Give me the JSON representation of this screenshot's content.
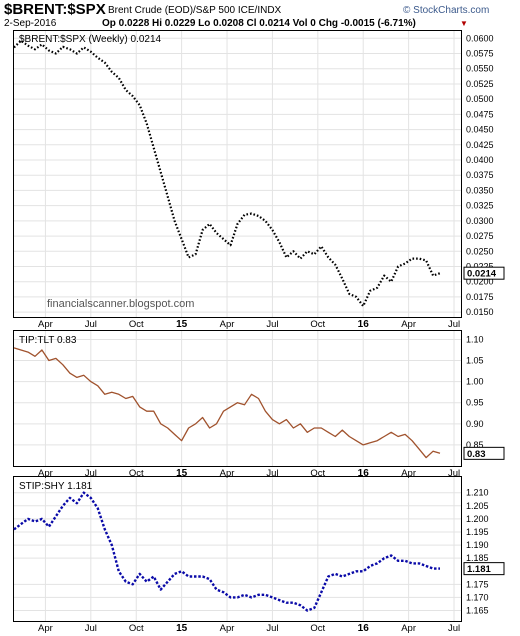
{
  "header": {
    "symbol": "$BRENT:$SPX",
    "description": "Brent Crude (EOD)/S&P 500 ICE/INDX",
    "brand": "© StockCharts.com",
    "date": "2-Sep-2016",
    "quote": "Op 0.0228  Hi 0.0229  Lo 0.0208  Cl 0.0214  Vol 0  Chg -0.0015 (-6.71%)",
    "down_marker": "▼"
  },
  "watermark": "financialscanner.blogspot.com",
  "colors": {
    "main": "#000000",
    "tip": "#a0522d",
    "stip": "#0a0aa8",
    "badge_bg": "#ffffff"
  },
  "chart_data": [
    {
      "type": "line",
      "legend": "$BRENT:$SPX (Weekly) 0.0214",
      "series": [
        {
          "name": "$BRENT:$SPX",
          "style": "dotted",
          "last_label": "0.0214",
          "x": [
            0,
            2,
            4,
            6,
            8,
            10,
            12,
            14,
            16,
            18,
            20,
            22,
            24,
            26,
            28,
            30,
            32,
            34,
            36,
            38,
            40,
            42,
            44,
            46,
            48,
            50,
            52,
            54,
            56,
            58,
            60,
            62,
            64,
            66,
            68,
            70,
            72,
            74,
            76,
            78,
            80,
            82,
            84,
            86,
            88,
            90,
            92,
            94,
            96,
            98,
            100,
            102,
            104,
            106,
            108,
            110,
            112,
            114,
            116,
            118,
            120,
            122
          ],
          "y": [
            0.0585,
            0.0596,
            0.0588,
            0.0582,
            0.059,
            0.058,
            0.0575,
            0.0586,
            0.0582,
            0.0575,
            0.0585,
            0.0578,
            0.0568,
            0.056,
            0.0545,
            0.0535,
            0.0515,
            0.0505,
            0.049,
            0.046,
            0.042,
            0.038,
            0.034,
            0.03,
            0.027,
            0.024,
            0.0245,
            0.0285,
            0.0295,
            0.028,
            0.027,
            0.026,
            0.0295,
            0.031,
            0.0312,
            0.0308,
            0.03,
            0.0285,
            0.0265,
            0.024,
            0.025,
            0.0238,
            0.025,
            0.0245,
            0.0258,
            0.024,
            0.0228,
            0.0205,
            0.018,
            0.0175,
            0.016,
            0.0185,
            0.019,
            0.021,
            0.02,
            0.0225,
            0.023,
            0.0238,
            0.0238,
            0.0235,
            0.021,
            0.0214
          ]
        }
      ],
      "ylim": [
        0.0142,
        0.0612
      ],
      "ticks": [
        "0.0600",
        "0.0575",
        "0.0550",
        "0.0525",
        "0.0500",
        "0.0475",
        "0.0450",
        "0.0425",
        "0.0400",
        "0.0375",
        "0.0350",
        "0.0325",
        "0.0300",
        "0.0275",
        "0.0250",
        "0.0225",
        "0.0200",
        "0.0175",
        "0.0150"
      ]
    },
    {
      "type": "line",
      "legend": "TIP:TLT 0.83",
      "series": [
        {
          "name": "TIP:TLT",
          "style": "solid",
          "last_label": "0.83",
          "x": [
            0,
            2,
            4,
            6,
            8,
            10,
            12,
            14,
            16,
            18,
            20,
            22,
            24,
            26,
            28,
            30,
            32,
            34,
            36,
            38,
            40,
            42,
            44,
            46,
            48,
            50,
            52,
            54,
            56,
            58,
            60,
            62,
            64,
            66,
            68,
            70,
            72,
            74,
            76,
            78,
            80,
            82,
            84,
            86,
            88,
            90,
            92,
            94,
            96,
            98,
            100,
            102,
            104,
            106,
            108,
            110,
            112,
            114,
            116,
            118,
            120,
            122
          ],
          "y": [
            1.08,
            1.075,
            1.07,
            1.06,
            1.075,
            1.05,
            1.055,
            1.04,
            1.02,
            1.01,
            1.015,
            1.0,
            0.99,
            0.97,
            0.975,
            0.97,
            0.96,
            0.965,
            0.94,
            0.93,
            0.93,
            0.9,
            0.89,
            0.875,
            0.86,
            0.89,
            0.9,
            0.915,
            0.89,
            0.9,
            0.93,
            0.94,
            0.95,
            0.945,
            0.97,
            0.96,
            0.93,
            0.91,
            0.9,
            0.91,
            0.89,
            0.9,
            0.88,
            0.89,
            0.89,
            0.88,
            0.87,
            0.885,
            0.87,
            0.86,
            0.85,
            0.855,
            0.86,
            0.87,
            0.88,
            0.87,
            0.875,
            0.86,
            0.84,
            0.82,
            0.835,
            0.83
          ]
        }
      ],
      "ylim": [
        0.8,
        1.12
      ],
      "ticks": [
        "1.10",
        "1.05",
        "1.00",
        "0.95",
        "0.90",
        "0.85"
      ]
    },
    {
      "type": "line",
      "legend": "STIP:SHY 1.181",
      "series": [
        {
          "name": "STIP:SHY",
          "style": "dashed",
          "last_label": "1.181",
          "x": [
            0,
            2,
            4,
            6,
            8,
            10,
            12,
            14,
            16,
            18,
            20,
            22,
            24,
            26,
            28,
            30,
            32,
            34,
            36,
            38,
            40,
            42,
            44,
            46,
            48,
            50,
            52,
            54,
            56,
            58,
            60,
            62,
            64,
            66,
            68,
            70,
            72,
            74,
            76,
            78,
            80,
            82,
            84,
            86,
            88,
            90,
            92,
            94,
            96,
            98,
            100,
            102,
            104,
            106,
            108,
            110,
            112,
            114,
            116,
            118,
            120,
            122
          ],
          "y": [
            1.196,
            1.198,
            1.2,
            1.199,
            1.2,
            1.197,
            1.201,
            1.205,
            1.208,
            1.206,
            1.21,
            1.208,
            1.204,
            1.196,
            1.19,
            1.18,
            1.176,
            1.175,
            1.179,
            1.176,
            1.178,
            1.173,
            1.176,
            1.179,
            1.18,
            1.178,
            1.178,
            1.178,
            1.177,
            1.173,
            1.172,
            1.17,
            1.17,
            1.171,
            1.17,
            1.171,
            1.171,
            1.17,
            1.169,
            1.168,
            1.168,
            1.167,
            1.165,
            1.166,
            1.172,
            1.178,
            1.179,
            1.178,
            1.179,
            1.18,
            1.18,
            1.182,
            1.183,
            1.185,
            1.186,
            1.184,
            1.184,
            1.183,
            1.183,
            1.182,
            1.181,
            1.181
          ]
        }
      ],
      "ylim": [
        1.161,
        1.216
      ],
      "ticks": [
        "1.210",
        "1.205",
        "1.200",
        "1.195",
        "1.190",
        "1.185",
        "1.175",
        "1.170",
        "1.165"
      ]
    }
  ],
  "x_axis": {
    "month_labels": [
      {
        "label": "Apr",
        "x": 9
      },
      {
        "label": "Jul",
        "x": 22
      },
      {
        "label": "Oct",
        "x": 35
      },
      {
        "label": "Apr",
        "x": 61
      },
      {
        "label": "Jul",
        "x": 74
      },
      {
        "label": "Oct",
        "x": 87
      },
      {
        "label": "Apr",
        "x": 113
      },
      {
        "label": "Jul",
        "x": 126
      }
    ],
    "year_labels": [
      {
        "label": "15",
        "x": 48
      },
      {
        "label": "16",
        "x": 100
      }
    ]
  }
}
